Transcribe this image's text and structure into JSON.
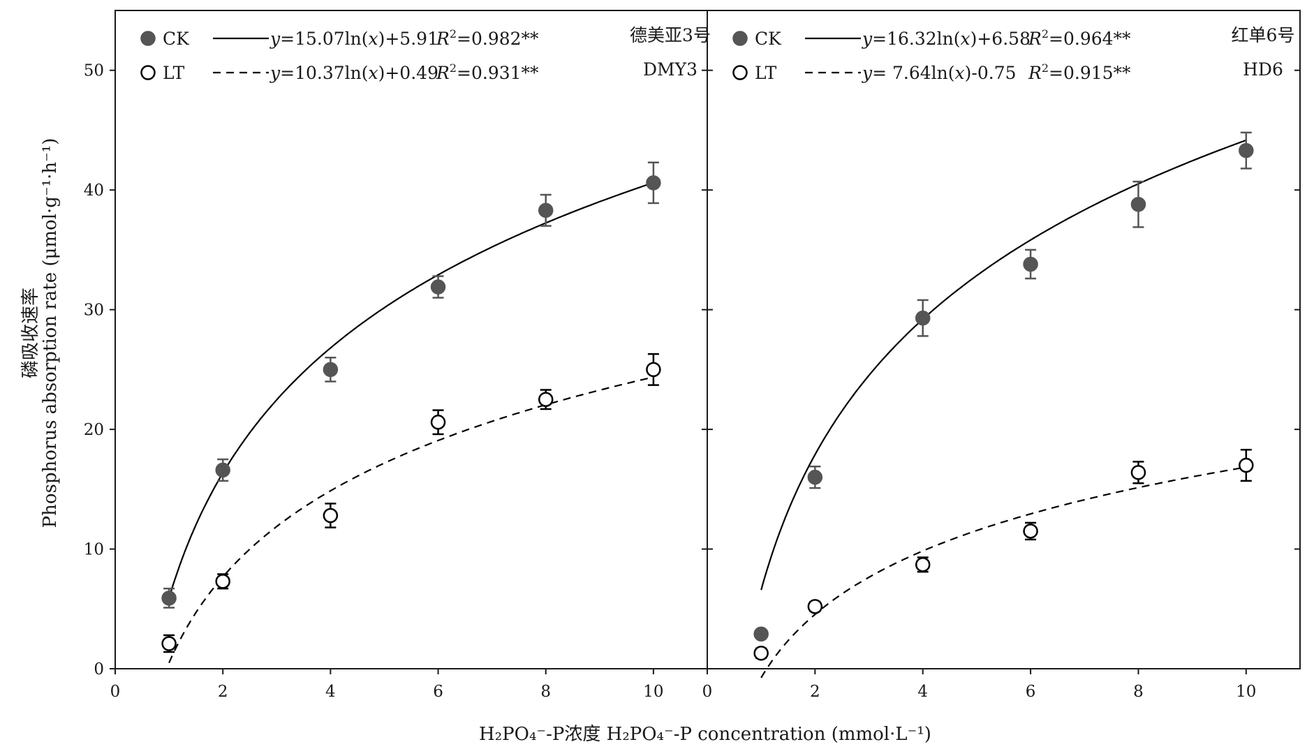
{
  "chart_data": [
    {
      "type": "scatter",
      "panel": "DMY3",
      "label_cn": "德美亚3号",
      "label_en": "DMY3",
      "x": [
        1,
        2,
        4,
        6,
        8,
        10
      ],
      "xlim": [
        0,
        11
      ],
      "ylim": [
        0,
        55
      ],
      "xticks": [
        0,
        2,
        4,
        6,
        8,
        10
      ],
      "yticks": [
        0,
        10,
        20,
        30,
        40,
        50
      ],
      "series": [
        {
          "name": "CK",
          "marker": "filled-circle",
          "color": "#555555",
          "values": [
            5.9,
            16.6,
            25.0,
            31.9,
            38.3,
            40.6
          ],
          "errors": [
            0.8,
            0.9,
            1.0,
            0.9,
            1.3,
            1.7
          ],
          "fit": {
            "a": 15.07,
            "b": 5.91,
            "style": "solid"
          },
          "equation": "y=15.07ln(x)+5.91",
          "r2": "R²=0.982**"
        },
        {
          "name": "LT",
          "marker": "open-circle",
          "color": "#000000",
          "values": [
            2.1,
            7.3,
            12.8,
            20.6,
            22.5,
            25.0
          ],
          "errors": [
            0.7,
            0.6,
            1.0,
            1.0,
            0.8,
            1.3
          ],
          "fit": {
            "a": 10.37,
            "b": 0.49,
            "style": "dashed"
          },
          "equation": "y=10.37ln(x)+0.49",
          "r2": "R²=0.931**"
        }
      ]
    },
    {
      "type": "scatter",
      "panel": "HD6",
      "label_cn": "红单6号",
      "label_en": "HD6",
      "x": [
        1,
        2,
        4,
        6,
        8,
        10
      ],
      "xlim": [
        0,
        11
      ],
      "ylim": [
        0,
        55
      ],
      "xticks": [
        0,
        2,
        4,
        6,
        8,
        10
      ],
      "yticks": [
        0,
        10,
        20,
        30,
        40,
        50
      ],
      "series": [
        {
          "name": "CK",
          "marker": "filled-circle",
          "color": "#555555",
          "values": [
            2.9,
            16.0,
            29.3,
            33.8,
            38.8,
            43.3
          ],
          "errors": [
            0.3,
            0.9,
            1.5,
            1.2,
            1.9,
            1.5
          ],
          "fit": {
            "a": 16.32,
            "b": 6.58,
            "style": "solid"
          },
          "equation": "y=16.32ln(x)+6.58",
          "r2": "R²=0.964**"
        },
        {
          "name": "LT",
          "marker": "open-circle",
          "color": "#000000",
          "values": [
            1.3,
            5.2,
            8.7,
            11.5,
            16.4,
            17.0
          ],
          "errors": [
            0.4,
            0.4,
            0.6,
            0.7,
            0.9,
            1.3
          ],
          "fit": {
            "a": 7.64,
            "b": -0.75,
            "style": "dashed"
          },
          "equation": "y= 7.64ln(x)-0.75",
          "r2": "R²=0.915**"
        }
      ]
    }
  ],
  "axes": {
    "ylabel_cn": "磷吸收速率",
    "ylabel_en": "Phosphorus absorption rate (μmol·g⁻¹·h⁻¹)",
    "xlabel": "H₂PO₄⁻-P浓度 H₂PO₄⁻-P concentration (mmol·L⁻¹)"
  }
}
